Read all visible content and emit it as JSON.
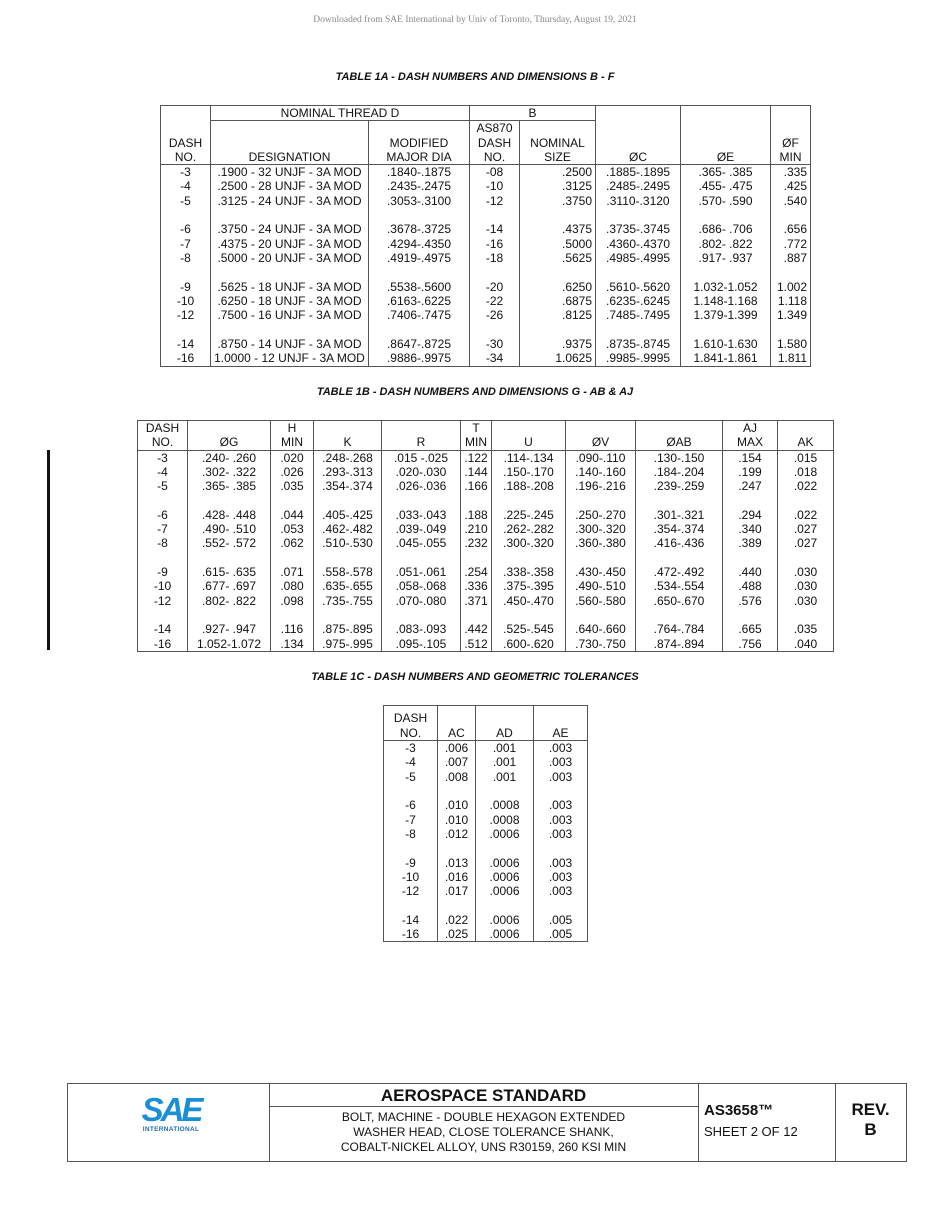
{
  "watermark": "Downloaded from SAE International by Univ of Toronto, Thursday, August 19, 2021",
  "table1a": {
    "title": "TABLE 1A - DASH NUMBERS AND DIMENSIONS B - F",
    "group_headers": {
      "thread": "NOMINAL THREAD D",
      "b": "B"
    },
    "headers": {
      "dash": [
        "DASH",
        "NO."
      ],
      "designation": "DESIGNATION",
      "modified": [
        "MODIFIED",
        "MAJOR DIA"
      ],
      "as870": [
        "AS870",
        "DASH",
        "NO."
      ],
      "nominal": [
        "NOMINAL",
        "SIZE"
      ],
      "c": "ØC",
      "e": "ØE",
      "f": [
        "ØF",
        "MIN"
      ]
    },
    "groups": [
      [
        [
          "-3",
          ".1900 - 32 UNJF - 3A MOD",
          ".1840-.1875",
          "-08",
          ".2500",
          ".1885-.1895",
          ".365- .385",
          ".335"
        ],
        [
          "-4",
          ".2500 - 28 UNJF - 3A MOD",
          ".2435-.2475",
          "-10",
          ".3125",
          ".2485-.2495",
          ".455- .475",
          ".425"
        ],
        [
          "-5",
          ".3125 - 24 UNJF - 3A MOD",
          ".3053-.3100",
          "-12",
          ".3750",
          ".3110-.3120",
          ".570- .590",
          ".540"
        ]
      ],
      [
        [
          "-6",
          ".3750 - 24 UNJF - 3A MOD",
          ".3678-.3725",
          "-14",
          ".4375",
          ".3735-.3745",
          ".686- .706",
          ".656"
        ],
        [
          "-7",
          ".4375 - 20 UNJF - 3A MOD",
          ".4294-.4350",
          "-16",
          ".5000",
          ".4360-.4370",
          ".802- .822",
          ".772"
        ],
        [
          "-8",
          ".5000 - 20 UNJF - 3A MOD",
          ".4919-.4975",
          "-18",
          ".5625",
          ".4985-.4995",
          ".917- .937",
          ".887"
        ]
      ],
      [
        [
          "-9",
          ".5625 - 18 UNJF - 3A MOD",
          ".5538-.5600",
          "-20",
          ".6250",
          ".5610-.5620",
          "1.032-1.052",
          "1.002"
        ],
        [
          "-10",
          ".6250 - 18 UNJF - 3A MOD",
          ".6163-.6225",
          "-22",
          ".6875",
          ".6235-.6245",
          "1.148-1.168",
          "1.118"
        ],
        [
          "-12",
          ".7500 - 16 UNJF - 3A MOD",
          ".7406-.7475",
          "-26",
          ".8125",
          ".7485-.7495",
          "1.379-1.399",
          "1.349"
        ]
      ],
      [
        [
          "-14",
          ".8750 - 14 UNJF - 3A MOD",
          ".8647-.8725",
          "-30",
          ".9375",
          ".8735-.8745",
          "1.610-1.630",
          "1.580"
        ],
        [
          "-16",
          "1.0000 - 12 UNJF - 3A MOD",
          ".9886-.9975",
          "-34",
          "1.0625",
          ".9985-.9995",
          "1.841-1.861",
          "1.811"
        ]
      ]
    ]
  },
  "table1b": {
    "title": "TABLE 1B - DASH NUMBERS AND DIMENSIONS G - AB & AJ",
    "headers": [
      [
        "DASH",
        "NO."
      ],
      [
        "",
        "ØG"
      ],
      [
        "H",
        "MIN"
      ],
      [
        "",
        "K"
      ],
      [
        "",
        "R"
      ],
      [
        "T",
        "MIN"
      ],
      [
        "",
        "U"
      ],
      [
        "",
        "ØV"
      ],
      [
        "",
        "ØAB"
      ],
      [
        "AJ",
        "MAX"
      ],
      [
        "",
        "AK"
      ]
    ],
    "groups": [
      [
        [
          "-3",
          ".240- .260",
          ".020",
          ".248-.268",
          ".015 -.025",
          ".122",
          ".114-.134",
          ".090-.110",
          ".130-.150",
          ".154",
          ".015"
        ],
        [
          "-4",
          ".302- .322",
          ".026",
          ".293-.313",
          ".020-.030",
          ".144",
          ".150-.170",
          ".140-.160",
          ".184-.204",
          ".199",
          ".018"
        ],
        [
          "-5",
          ".365- .385",
          ".035",
          ".354-.374",
          ".026-.036",
          ".166",
          ".188-.208",
          ".196-.216",
          ".239-.259",
          ".247",
          ".022"
        ]
      ],
      [
        [
          "-6",
          ".428- .448",
          ".044",
          ".405-.425",
          ".033-.043",
          ".188",
          ".225-.245",
          ".250-.270",
          ".301-.321",
          ".294",
          ".022"
        ],
        [
          "-7",
          ".490- .510",
          ".053",
          ".462-.482",
          ".039-.049",
          ".210",
          ".262-.282",
          ".300-.320",
          ".354-.374",
          ".340",
          ".027"
        ],
        [
          "-8",
          ".552- .572",
          ".062",
          ".510-.530",
          ".045-.055",
          ".232",
          ".300-.320",
          ".360-.380",
          ".416-.436",
          ".389",
          ".027"
        ]
      ],
      [
        [
          "-9",
          ".615- .635",
          ".071",
          ".558-.578",
          ".051-.061",
          ".254",
          ".338-.358",
          ".430-.450",
          ".472-.492",
          ".440",
          ".030"
        ],
        [
          "-10",
          ".677- .697",
          ".080",
          ".635-.655",
          ".058-.068",
          ".336",
          ".375-.395",
          ".490-.510",
          ".534-.554",
          ".488",
          ".030"
        ],
        [
          "-12",
          ".802- .822",
          ".098",
          ".735-.755",
          ".070-.080",
          ".371",
          ".450-.470",
          ".560-.580",
          ".650-.670",
          ".576",
          ".030"
        ]
      ],
      [
        [
          "-14",
          ".927- .947",
          ".116",
          ".875-.895",
          ".083-.093",
          ".442",
          ".525-.545",
          ".640-.660",
          ".764-.784",
          ".665",
          ".035"
        ],
        [
          "-16",
          "1.052-1.072",
          ".134",
          ".975-.995",
          ".095-.105",
          ".512",
          ".600-.620",
          ".730-.750",
          ".874-.894",
          ".756",
          ".040"
        ]
      ]
    ]
  },
  "table1c": {
    "title": "TABLE 1C - DASH NUMBERS AND GEOMETRIC TOLERANCES",
    "headers": [
      [
        "DASH",
        "NO."
      ],
      [
        "",
        "AC"
      ],
      [
        "",
        "AD"
      ],
      [
        "",
        "AE"
      ]
    ],
    "groups": [
      [
        [
          "-3",
          ".006",
          ".001",
          ".003"
        ],
        [
          "-4",
          ".007",
          ".001",
          ".003"
        ],
        [
          "-5",
          ".008",
          ".001",
          ".003"
        ]
      ],
      [
        [
          "-6",
          ".010",
          ".0008",
          ".003"
        ],
        [
          "-7",
          ".010",
          ".0008",
          ".003"
        ],
        [
          "-8",
          ".012",
          ".0006",
          ".003"
        ]
      ],
      [
        [
          "-9",
          ".013",
          ".0006",
          ".003"
        ],
        [
          "-10",
          ".016",
          ".0006",
          ".003"
        ],
        [
          "-12",
          ".017",
          ".0006",
          ".003"
        ]
      ],
      [
        [
          "-14",
          ".022",
          ".0006",
          ".005"
        ],
        [
          "-16",
          ".025",
          ".0006",
          ".005"
        ]
      ]
    ]
  },
  "footer": {
    "logo": {
      "mark": "SAE",
      "sub": "INTERNATIONAL",
      "color": "#1a8fd8"
    },
    "category": "AEROSPACE STANDARD",
    "description": [
      "BOLT, MACHINE - DOUBLE HEXAGON EXTENDED",
      "WASHER HEAD, CLOSE TOLERANCE SHANK,",
      "COBALT-NICKEL ALLOY, UNS R30159, 260 KSI MIN"
    ],
    "doc_number": "AS3658™",
    "sheet": "SHEET 2 OF 12",
    "revision": [
      "REV.",
      "B"
    ]
  }
}
